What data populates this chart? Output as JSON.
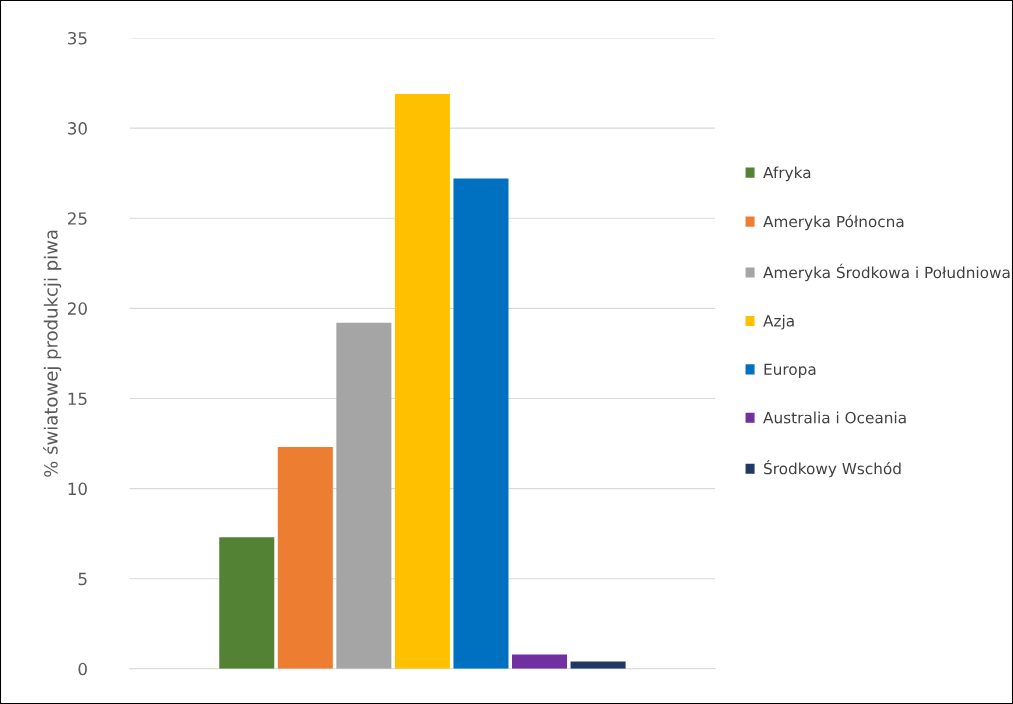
{
  "chart_data": {
    "type": "bar",
    "ylabel": "% światowej produkcji piwa",
    "categories": [
      null
    ],
    "series": [
      {
        "name": "Afryka",
        "color": "#548235",
        "values": [
          7.3
        ]
      },
      {
        "name": "Ameryka Północna",
        "color": "#ed7d31",
        "values": [
          12.3
        ]
      },
      {
        "name": "Ameryka Środkowa i Południowa",
        "color": "#a5a5a5",
        "values": [
          19.2
        ]
      },
      {
        "name": "Azja",
        "color": "#ffc000",
        "values": [
          31.9
        ]
      },
      {
        "name": "Europa",
        "color": "#0070c0",
        "values": [
          27.2
        ]
      },
      {
        "name": "Australia i Oceania",
        "color": "#7030a0",
        "values": [
          0.8
        ]
      },
      {
        "name": "Środkowy Wschód",
        "color": "#203864",
        "values": [
          0.4
        ]
      }
    ],
    "ylim": [
      0,
      35
    ],
    "yticks": [
      0,
      5,
      10,
      15,
      20,
      25,
      30,
      35
    ],
    "grid": "y",
    "legend": "right"
  }
}
